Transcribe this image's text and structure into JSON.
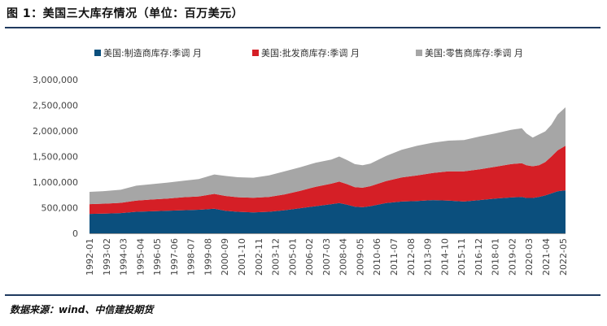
{
  "figure": {
    "title": "图 1：美国三大库存情况（单位：百万美元）",
    "source": "数据来源：wind、中信建投期货"
  },
  "chart_data": {
    "type": "area",
    "stacked": true,
    "title": "",
    "xlabel": "",
    "ylabel": "",
    "ylim": [
      0,
      3000000
    ],
    "yticks": [
      "0",
      "500,000",
      "1,000,000",
      "1,500,000",
      "2,000,000",
      "2,500,000",
      "3,000,000"
    ],
    "grid": false,
    "legend_position": "top",
    "x_tick_labels": [
      "1992-01",
      "1993-02",
      "1994-03",
      "1995-04",
      "1996-05",
      "1997-06",
      "1998-07",
      "1999-08",
      "2000-09",
      "2001-10",
      "2002-11",
      "2003-12",
      "2005-01",
      "2006-02",
      "2007-03",
      "2008-04",
      "2009-05",
      "2010-06",
      "2011-07",
      "2012-08",
      "2013-09",
      "2014-10",
      "2015-11",
      "2016-12",
      "2018-01",
      "2019-02",
      "2020-03",
      "2021-04",
      "2022-05"
    ],
    "x": [
      1992.0,
      1993.0,
      1994.0,
      1995.0,
      1996.0,
      1997.0,
      1998.0,
      1999.0,
      2000.0,
      2000.7,
      2001.5,
      2002.5,
      2003.5,
      2004.5,
      2005.5,
      2006.5,
      2007.5,
      2008.0,
      2008.5,
      2009.0,
      2009.5,
      2010.0,
      2011.0,
      2012.0,
      2013.0,
      2014.0,
      2015.0,
      2016.0,
      2017.0,
      2018.0,
      2019.0,
      2019.7,
      2020.0,
      2020.4,
      2020.8,
      2021.2,
      2021.6,
      2022.0,
      2022.5
    ],
    "series": [
      {
        "name": "美国:制造商库存:季调 月",
        "color": "#0b4f7d",
        "values": [
          380000,
          385000,
          395000,
          420000,
          430000,
          440000,
          450000,
          460000,
          480000,
          440000,
          420000,
          410000,
          420000,
          450000,
          490000,
          530000,
          570000,
          590000,
          560000,
          520000,
          510000,
          530000,
          590000,
          620000,
          630000,
          650000,
          640000,
          620000,
          650000,
          680000,
          700000,
          710000,
          690000,
          690000,
          710000,
          740000,
          780000,
          820000,
          840000
        ]
      },
      {
        "name": "美国:批发商库存:季调 月",
        "color": "#d51f26",
        "values": [
          190000,
          195000,
          200000,
          220000,
          230000,
          240000,
          255000,
          260000,
          290000,
          290000,
          285000,
          285000,
          290000,
          310000,
          340000,
          380000,
          400000,
          420000,
          400000,
          380000,
          380000,
          390000,
          430000,
          470000,
          500000,
          530000,
          570000,
          590000,
          600000,
          620000,
          650000,
          660000,
          640000,
          620000,
          620000,
          650000,
          720000,
          800000,
          870000
        ]
      },
      {
        "name": "美国:零售商库存:季调 月",
        "color": "#a6a6a6",
        "values": [
          240000,
          245000,
          255000,
          290000,
          300000,
          310000,
          320000,
          340000,
          380000,
          390000,
          390000,
          390000,
          420000,
          450000,
          460000,
          470000,
          470000,
          490000,
          470000,
          450000,
          440000,
          440000,
          490000,
          540000,
          580000,
          590000,
          600000,
          610000,
          640000,
          650000,
          670000,
          680000,
          620000,
          560000,
          600000,
          600000,
          620000,
          700000,
          750000
        ]
      }
    ]
  }
}
